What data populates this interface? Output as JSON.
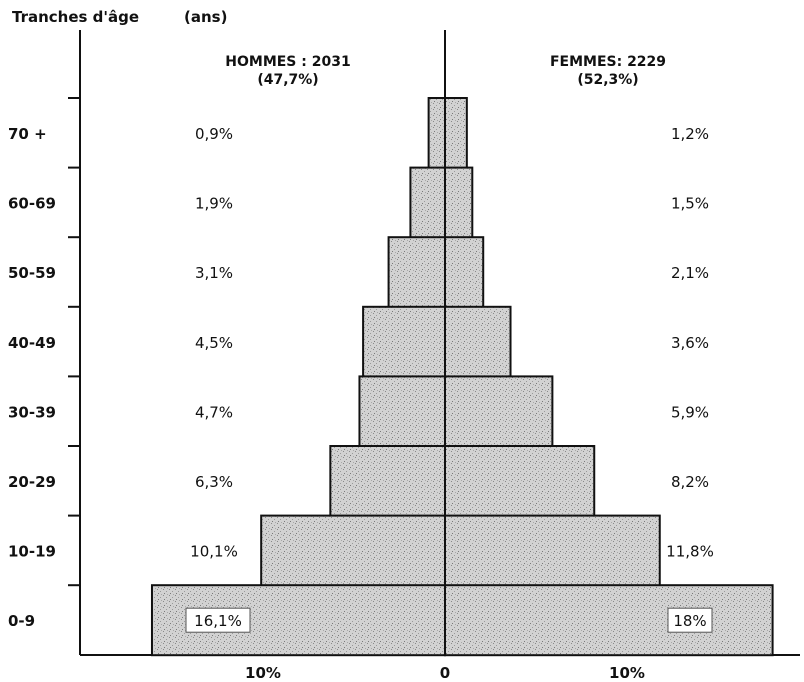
{
  "chart_data": {
    "type": "bar",
    "subtype": "population-pyramid",
    "yaxis_title": "Tranches d'âge",
    "yaxis_unit": "(ans)",
    "categories": [
      "70 +",
      "60-69",
      "50-59",
      "40-49",
      "30-39",
      "20-29",
      "10-19",
      "0-9"
    ],
    "series": [
      {
        "name": "HOMMES",
        "header": "HOMMES : 2031",
        "share": "(47,7%)",
        "values": [
          0.9,
          1.9,
          3.1,
          4.5,
          4.7,
          6.3,
          10.1,
          16.1
        ],
        "labels": [
          "0,9%",
          "1,9%",
          "3,1%",
          "4,5%",
          "4,7%",
          "6,3%",
          "10,1%",
          "16,1%"
        ]
      },
      {
        "name": "FEMMES",
        "header": "FEMMES: 2229",
        "share": "(52,3%)",
        "values": [
          1.2,
          1.5,
          2.1,
          3.6,
          5.9,
          8.2,
          11.8,
          18
        ],
        "labels": [
          "1,2%",
          "1,5%",
          "2,1%",
          "3,6%",
          "5,9%",
          "8,2%",
          "11,8%",
          "18%"
        ]
      }
    ],
    "xticks": [
      {
        "value": -10,
        "label": "10%"
      },
      {
        "value": 0,
        "label": "0"
      },
      {
        "value": 10,
        "label": "10%"
      }
    ],
    "xlim": [
      -17,
      18
    ],
    "bar_fill": "#cfcfcf",
    "stroke_color": "#111111"
  }
}
